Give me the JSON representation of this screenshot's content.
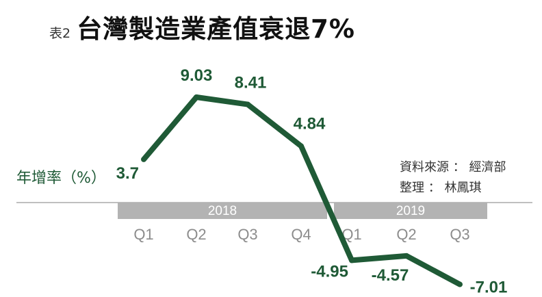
{
  "title": {
    "tag": "表2",
    "text": "台灣製造業產值衰退7%"
  },
  "ylabel": "年增率（%）",
  "source": {
    "line1": "資料來源 ： 經濟部",
    "line2": "整理 ： 林鳳琪"
  },
  "colors": {
    "line": "#1f5a36",
    "year_band": "#b3b3b3",
    "axis": "#999999",
    "tick_label": "#8c8c8c"
  },
  "chart_data": {
    "type": "line",
    "years": [
      {
        "label": "2018",
        "quarters": [
          "Q1",
          "Q2",
          "Q3",
          "Q4"
        ]
      },
      {
        "label": "2019",
        "quarters": [
          "Q1",
          "Q2",
          "Q3"
        ]
      }
    ],
    "categories": [
      "Q1",
      "Q2",
      "Q3",
      "Q4",
      "Q1",
      "Q2",
      "Q3"
    ],
    "values": [
      3.7,
      9.03,
      8.41,
      4.84,
      -4.95,
      -4.57,
      -7.01
    ],
    "data_labels": [
      "3.7",
      "9.03",
      "8.41",
      "4.84",
      "-4.95",
      "-4.57",
      "-7.01"
    ],
    "xlabel": "",
    "ylabel": "年增率（%）",
    "ylim": [
      -8,
      10
    ],
    "grid": false
  }
}
